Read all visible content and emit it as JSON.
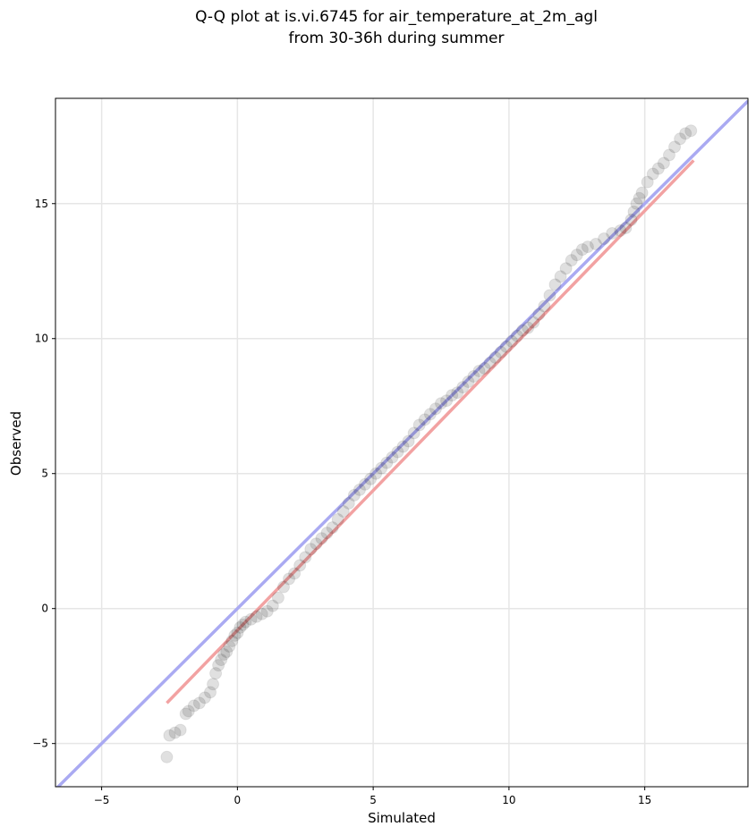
{
  "chart_data": {
    "type": "scatter",
    "title_line1": "Q-Q plot at is.vi.6745 for air_temperature_at_2m_agl",
    "title_line2": "from 30-36h during summer",
    "xlabel": "Simulated",
    "ylabel": "Observed",
    "xlim": [
      -6.7,
      18.8
    ],
    "ylim": [
      -6.6,
      18.9
    ],
    "x_ticks": [
      -5,
      0,
      5,
      10,
      15
    ],
    "y_ticks": [
      -5,
      0,
      5,
      10,
      15
    ],
    "x_tick_labels": [
      "−5",
      "0",
      "5",
      "10",
      "15"
    ],
    "y_tick_labels": [
      "−5",
      "0",
      "5",
      "10",
      "15"
    ],
    "grid": true,
    "colors": {
      "points": "#000000",
      "identity_line": "#aaaaf2",
      "fit_line": "#f2a2a2",
      "grid": "#e6e6e6"
    },
    "identity_line": {
      "x": [
        -6.7,
        18.8
      ],
      "y": [
        -6.7,
        18.8
      ]
    },
    "fit_line": {
      "x": [
        -2.6,
        16.8
      ],
      "y": [
        -3.5,
        16.6
      ]
    },
    "quantiles": {
      "x": [
        -2.6,
        -2.5,
        -2.3,
        -2.1,
        -1.9,
        -1.8,
        -1.6,
        -1.4,
        -1.2,
        -1.0,
        -0.9,
        -0.8,
        -0.7,
        -0.6,
        -0.5,
        -0.4,
        -0.3,
        -0.2,
        -0.1,
        0.0,
        0.1,
        0.2,
        0.3,
        0.5,
        0.7,
        0.9,
        1.1,
        1.3,
        1.5,
        1.7,
        1.9,
        2.1,
        2.3,
        2.5,
        2.7,
        2.9,
        3.1,
        3.3,
        3.5,
        3.7,
        3.9,
        4.1,
        4.3,
        4.5,
        4.7,
        4.9,
        5.1,
        5.3,
        5.5,
        5.7,
        5.9,
        6.1,
        6.3,
        6.5,
        6.7,
        6.9,
        7.1,
        7.3,
        7.5,
        7.7,
        7.9,
        8.1,
        8.3,
        8.5,
        8.7,
        8.9,
        9.1,
        9.3,
        9.5,
        9.7,
        9.9,
        10.1,
        10.3,
        10.5,
        10.7,
        10.9,
        11.1,
        11.3,
        11.5,
        11.7,
        11.9,
        12.1,
        12.3,
        12.5,
        12.7,
        12.9,
        13.2,
        13.5,
        13.8,
        14.1,
        14.3,
        14.5,
        14.6,
        14.7,
        14.8,
        14.9,
        15.1,
        15.3,
        15.5,
        15.7,
        15.9,
        16.1,
        16.3,
        16.5,
        16.7
      ],
      "y": [
        -5.5,
        -4.7,
        -4.6,
        -4.5,
        -3.9,
        -3.8,
        -3.6,
        -3.5,
        -3.3,
        -3.1,
        -2.8,
        -2.4,
        -2.1,
        -1.9,
        -1.7,
        -1.6,
        -1.4,
        -1.2,
        -1.0,
        -0.9,
        -0.7,
        -0.6,
        -0.5,
        -0.4,
        -0.3,
        -0.2,
        -0.1,
        0.1,
        0.4,
        0.8,
        1.1,
        1.3,
        1.6,
        1.9,
        2.2,
        2.4,
        2.6,
        2.8,
        3.0,
        3.3,
        3.6,
        3.9,
        4.2,
        4.4,
        4.6,
        4.8,
        5.0,
        5.2,
        5.4,
        5.6,
        5.8,
        6.0,
        6.2,
        6.5,
        6.8,
        7.0,
        7.2,
        7.4,
        7.6,
        7.7,
        7.9,
        8.0,
        8.2,
        8.4,
        8.6,
        8.8,
        8.9,
        9.1,
        9.3,
        9.5,
        9.7,
        9.9,
        10.1,
        10.3,
        10.4,
        10.6,
        10.9,
        11.2,
        11.6,
        12.0,
        12.3,
        12.6,
        12.9,
        13.1,
        13.3,
        13.4,
        13.5,
        13.7,
        13.9,
        14.0,
        14.1,
        14.4,
        14.7,
        15.0,
        15.2,
        15.4,
        15.8,
        16.1,
        16.3,
        16.5,
        16.8,
        17.1,
        17.4,
        17.6,
        17.7
      ]
    }
  }
}
